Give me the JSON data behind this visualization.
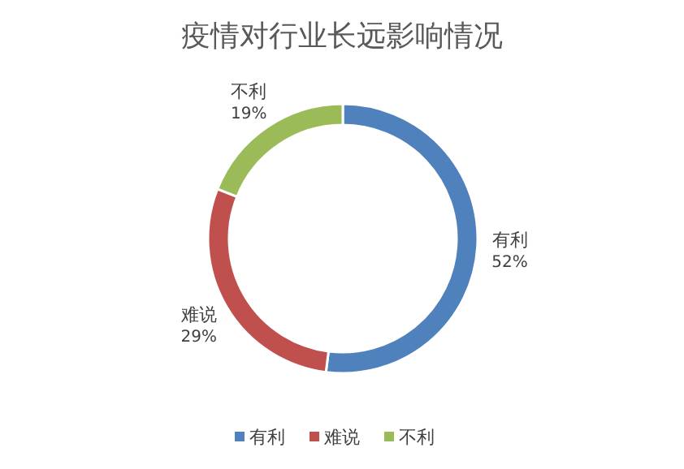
{
  "chart_data": {
    "type": "donut",
    "title": "疫情对行业长远影响情况",
    "categories": [
      "有利",
      "难说",
      "不利"
    ],
    "values": [
      52,
      29,
      19
    ],
    "colors": [
      "#4f81bd",
      "#c0504d",
      "#9bbb59"
    ],
    "value_labels": [
      "52%",
      "29%",
      "19%"
    ],
    "legend": "bottom"
  }
}
